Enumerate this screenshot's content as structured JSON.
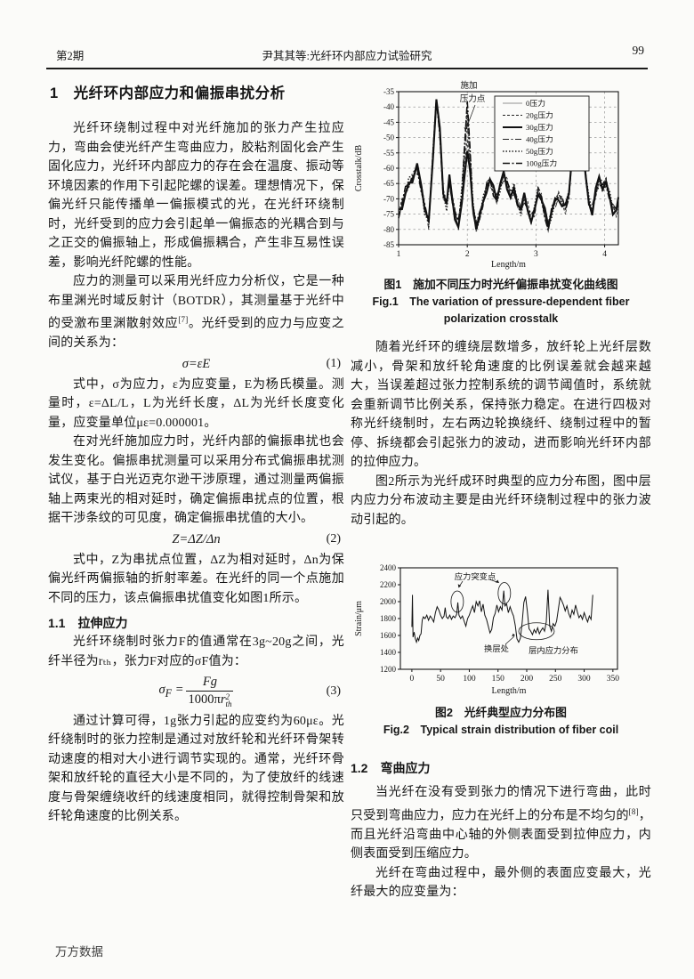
{
  "header": {
    "issue": "第2期",
    "running_title": "尹其其等:光纤环内部应力试验研究",
    "page_no": "99"
  },
  "watermark": "万方数据",
  "section1": {
    "title": "1　光纤环内部应力和偏振串扰分析",
    "p1": "光纤环绕制过程中对光纤施加的张力产生拉应力，弯曲会使光纤产生弯曲应力，胶粘剂固化会产生固化应力，光纤环内部应力的存在会在温度、振动等环境因素的作用下引起陀螺的误差。理想情况下，保偏光纤只能传播单一偏振模式的光，在光纤环绕制时，光纤受到的应力会引起单一偏振态的光耦合到与之正交的偏振轴上，形成偏振耦合，产生非互易性误差，影响光纤陀螺的性能。",
    "p2a": "应力的测量可以采用光纤应力分析仪，它是一种布里渊光时域反射计（BOTDR），其测量基于光纤中的受激布里渊散射效应",
    "p2_ref": "[7]",
    "p2b": "。光纤受到的应力与应变之间的关系为：",
    "eq1": {
      "body": "σ=εE",
      "no": "(1)"
    },
    "p3": "式中，σ为应力，ε为应变量，E为杨氏模量。测量时，ε=ΔL/L，L为光纤长度，ΔL为光纤长度变化量，应变量单位με=0.000001。",
    "p4": "在对光纤施加应力时，光纤内部的偏振串扰也会发生变化。偏振串扰测量可以采用分布式偏振串扰测试仪，基于白光迈克尔逊干涉原理，通过测量两偏振轴上两束光的相对延时，确定偏振串扰点的位置，根据干涉条纹的可见度，确定偏振串扰值的大小。",
    "eq2": {
      "body": "Z=ΔZ/Δn",
      "no": "(2)"
    },
    "p5": "式中，Z为串扰点位置，ΔZ为相对延时，Δn为保偏光纤两偏振轴的折射率差。在光纤的同一个点施加不同的压力，该点偏振串扰值变化如图1所示。",
    "h11": "1.1　拉伸应力",
    "p6": "光纤环绕制时张力F的值通常在3g~20g之间，光纤半径为rₜₕ，张力F对应的σF值为：",
    "eq3": {
      "lhs": "σ",
      "lhs_sub": "F",
      "eqsign": "=",
      "num": "Fg",
      "den_pre": "1000π",
      "den_r": "r",
      "den_sup": "2",
      "den_sub": "th",
      "no": "(3)"
    },
    "p7": "通过计算可得，1g张力引起的应变约为60με。光纤绕制时的张力控制是通过对放纤轮和光纤环骨架转动速度的相对大小进行调节实现的。通常，光纤环骨架和放纤轮的直径大小是不同的，为了使放纤的线速度与骨架缠绕收纤的线速度相同，就得控制骨架和放纤轮角速度的比例关系。",
    "p8": "随着光纤环的缠绕层数增多，放纤轮上光纤层数减小，骨架和放纤轮角速度的比例误差就会越来越大，当误差超过张力控制系统的调节阈值时，系统就会重新调节比例关系，保持张力稳定。在进行四极对称光纤绕制时，左右两边轮换绕纤、绕制过程中的暂停、拆绕都会引起张力的波动，进而影响光纤环内部的拉伸应力。",
    "p9": "图2所示为光纤成环时典型的应力分布图，图中层内应力分布波动主要是由光纤环绕制过程中的张力波动引起的。",
    "h12": "1.2　弯曲应力",
    "p10a": "当光纤在没有受到张力的情况下进行弯曲，此时只受到弯曲应力，应力在光纤上的分布是不均匀的",
    "p10_ref": "[8]",
    "p10b": "，而且光纤沿弯曲中心轴的外侧表面受到拉伸应力，内侧表面受到压缩应力。",
    "p11": "光纤在弯曲过程中，最外侧的表面应变最大，光纤最大的应变量为："
  },
  "figures": {
    "fig1_cap_zh": "图1　施加不同压力时光纤偏振串扰变化曲线图",
    "fig1_cap_en1": "Fig.1　The variation of pressure-dependent fiber",
    "fig1_cap_en2": "polarization crosstalk",
    "fig2_cap_zh": "图2　光纤典型应力分布图",
    "fig2_cap_en": "Fig.2　Typical strain distribution of fiber coil"
  },
  "chart_data": [
    {
      "type": "line",
      "title": "施加不同压力时光纤偏振串扰变化曲线图",
      "xlabel": "Length/m",
      "ylabel": "Crosstalk/dB",
      "xlim": [
        1,
        4.2
      ],
      "ylim": [
        -85,
        -35
      ],
      "xticks": [
        1,
        2,
        3,
        4
      ],
      "yticks": [
        -35,
        -40,
        -45,
        -50,
        -55,
        -60,
        -65,
        -70,
        -75,
        -80,
        -85
      ],
      "grid": "dashed",
      "legend_position": "upper right",
      "annotation": {
        "lines": [
          "施加",
          "压力点"
        ],
        "points_to_x": 2
      },
      "series": [
        {
          "name": "0压力",
          "peak_at_2m": -55,
          "width": 0.7,
          "dash": "",
          "color": "#6e6e6e"
        },
        {
          "name": "20g压力",
          "peak_at_2m": -50,
          "width": 0.9,
          "dash": "3,2",
          "color": "#222222"
        },
        {
          "name": "30g压力",
          "peak_at_2m": -54,
          "width": 2.1,
          "dash": "",
          "color": "#111111"
        },
        {
          "name": "40g压力",
          "peak_at_2m": -47,
          "width": 0.9,
          "dash": "7,2.5,2,2.5",
          "color": "#222222"
        },
        {
          "name": "50g压力",
          "peak_at_2m": -41,
          "width": 1.5,
          "dash": "1.5,2",
          "color": "#222222"
        },
        {
          "name": "100g压力",
          "peak_at_2m": -38,
          "width": 1.5,
          "dash": "8,2.5,2,2.5",
          "color": "#111111"
        }
      ],
      "base_points": [
        [
          1.0,
          -75
        ],
        [
          1.05,
          -72
        ],
        [
          1.1,
          -68
        ],
        [
          1.15,
          -65
        ],
        [
          1.2,
          -63
        ],
        [
          1.27,
          -60
        ],
        [
          1.33,
          -66
        ],
        [
          1.38,
          -73
        ],
        [
          1.44,
          -78
        ],
        [
          1.5,
          -55
        ],
        [
          1.55,
          -37.5
        ],
        [
          1.6,
          -48
        ],
        [
          1.65,
          -68
        ],
        [
          1.7,
          -72
        ],
        [
          1.74,
          -64
        ],
        [
          1.78,
          -70
        ],
        [
          1.82,
          -75
        ],
        [
          1.87,
          -79
        ],
        [
          1.92,
          -72
        ],
        [
          1.96,
          -62
        ],
        [
          2.0,
          -55
        ],
        [
          2.04,
          -63
        ],
        [
          2.08,
          -74
        ],
        [
          2.13,
          -79
        ],
        [
          2.18,
          -76
        ],
        [
          2.23,
          -71
        ],
        [
          2.28,
          -66
        ],
        [
          2.33,
          -64
        ],
        [
          2.38,
          -67
        ],
        [
          2.43,
          -70
        ],
        [
          2.48,
          -66
        ],
        [
          2.53,
          -62
        ],
        [
          2.58,
          -65
        ],
        [
          2.63,
          -69
        ],
        [
          2.68,
          -67
        ],
        [
          2.73,
          -71
        ],
        [
          2.78,
          -74
        ],
        [
          2.83,
          -70
        ],
        [
          2.88,
          -73
        ],
        [
          2.93,
          -77
        ],
        [
          2.98,
          -74
        ],
        [
          3.03,
          -67
        ],
        [
          3.08,
          -70
        ],
        [
          3.13,
          -75
        ],
        [
          3.18,
          -79
        ],
        [
          3.23,
          -74
        ],
        [
          3.28,
          -71
        ],
        [
          3.33,
          -69
        ],
        [
          3.38,
          -71
        ],
        [
          3.43,
          -73
        ],
        [
          3.48,
          -68
        ],
        [
          3.53,
          -55
        ],
        [
          3.58,
          -41
        ],
        [
          3.62,
          -39
        ],
        [
          3.67,
          -47
        ],
        [
          3.72,
          -62
        ],
        [
          3.77,
          -71
        ],
        [
          3.82,
          -74
        ],
        [
          3.87,
          -68
        ],
        [
          3.92,
          -64
        ],
        [
          3.97,
          -66
        ],
        [
          4.02,
          -65
        ],
        [
          4.07,
          -69
        ],
        [
          4.12,
          -73
        ],
        [
          4.17,
          -74
        ],
        [
          4.2,
          -71
        ]
      ]
    },
    {
      "type": "line",
      "title": "光纤典型应力分布图",
      "xlabel": "Length/m",
      "ylabel": "Strain/μm",
      "xlim": [
        -20,
        358
      ],
      "ylim": [
        1200,
        2400
      ],
      "xticks": [
        0,
        50,
        100,
        150,
        200,
        250,
        300,
        350
      ],
      "yticks": [
        1200,
        1400,
        1600,
        1800,
        2000,
        2200,
        2400
      ],
      "grid": "off",
      "annotations": [
        {
          "label": "应力突变点",
          "targets_x": [
            79,
            161
          ]
        },
        {
          "label": "换层处",
          "targets_x": [
            183
          ]
        },
        {
          "label": "层内应力分布",
          "targets_x": [
            217
          ]
        }
      ],
      "points": [
        [
          0,
          1700
        ],
        [
          1,
          2080
        ],
        [
          2,
          1580
        ],
        [
          4,
          1640
        ],
        [
          6,
          1560
        ],
        [
          8,
          1520
        ],
        [
          10,
          1570
        ],
        [
          12,
          1540
        ],
        [
          14,
          1600
        ],
        [
          16,
          1620
        ],
        [
          18,
          1780
        ],
        [
          20,
          1820
        ],
        [
          23,
          1800
        ],
        [
          26,
          1840
        ],
        [
          29,
          1780
        ],
        [
          32,
          1830
        ],
        [
          35,
          1800
        ],
        [
          38,
          1760
        ],
        [
          41,
          1870
        ],
        [
          44,
          1940
        ],
        [
          47,
          1900
        ],
        [
          50,
          1840
        ],
        [
          53,
          1800
        ],
        [
          56,
          1830
        ],
        [
          58,
          1930
        ],
        [
          60,
          1820
        ],
        [
          63,
          1800
        ],
        [
          66,
          1840
        ],
        [
          69,
          1790
        ],
        [
          72,
          1830
        ],
        [
          75,
          1810
        ],
        [
          78,
          1850
        ],
        [
          80,
          1990
        ],
        [
          82,
          1840
        ],
        [
          85,
          1800
        ],
        [
          88,
          1830
        ],
        [
          91,
          1770
        ],
        [
          94,
          1710
        ],
        [
          97,
          1800
        ],
        [
          100,
          1840
        ],
        [
          103,
          1900
        ],
        [
          106,
          1950
        ],
        [
          109,
          1870
        ],
        [
          112,
          2000
        ],
        [
          115,
          1950
        ],
        [
          118,
          2010
        ],
        [
          121,
          1880
        ],
        [
          124,
          1970
        ],
        [
          127,
          1840
        ],
        [
          130,
          1790
        ],
        [
          133,
          1710
        ],
        [
          136,
          1630
        ],
        [
          139,
          1670
        ],
        [
          142,
          1810
        ],
        [
          145,
          1860
        ],
        [
          148,
          1960
        ],
        [
          151,
          1880
        ],
        [
          154,
          1940
        ],
        [
          157,
          1900
        ],
        [
          160,
          2130
        ],
        [
          162,
          1950
        ],
        [
          165,
          1970
        ],
        [
          168,
          1870
        ],
        [
          171,
          1940
        ],
        [
          174,
          1880
        ],
        [
          177,
          1830
        ],
        [
          180,
          1720
        ],
        [
          183,
          1560
        ],
        [
          186,
          1520
        ],
        [
          189,
          1570
        ],
        [
          192,
          1750
        ],
        [
          195,
          1990
        ],
        [
          198,
          2060
        ],
        [
          201,
          1890
        ],
        [
          204,
          1680
        ],
        [
          207,
          1650
        ],
        [
          210,
          1610
        ],
        [
          213,
          1670
        ],
        [
          216,
          1630
        ],
        [
          219,
          1690
        ],
        [
          222,
          1620
        ],
        [
          225,
          1660
        ],
        [
          228,
          1690
        ],
        [
          231,
          1650
        ],
        [
          234,
          1760
        ],
        [
          237,
          2140
        ],
        [
          240,
          1710
        ],
        [
          243,
          1650
        ],
        [
          246,
          1740
        ],
        [
          249,
          1710
        ],
        [
          252,
          1770
        ],
        [
          255,
          1910
        ],
        [
          258,
          2050
        ],
        [
          261,
          2010
        ],
        [
          264,
          1960
        ],
        [
          267,
          1890
        ],
        [
          270,
          1950
        ],
        [
          273,
          1860
        ],
        [
          276,
          1810
        ],
        [
          279,
          1900
        ],
        [
          282,
          1850
        ],
        [
          285,
          1960
        ],
        [
          288,
          1880
        ],
        [
          291,
          1810
        ],
        [
          294,
          1840
        ],
        [
          297,
          1790
        ],
        [
          300,
          1870
        ],
        [
          303,
          1810
        ],
        [
          306,
          1760
        ],
        [
          309,
          1830
        ],
        [
          312,
          1790
        ],
        [
          315,
          2080
        ]
      ]
    }
  ]
}
